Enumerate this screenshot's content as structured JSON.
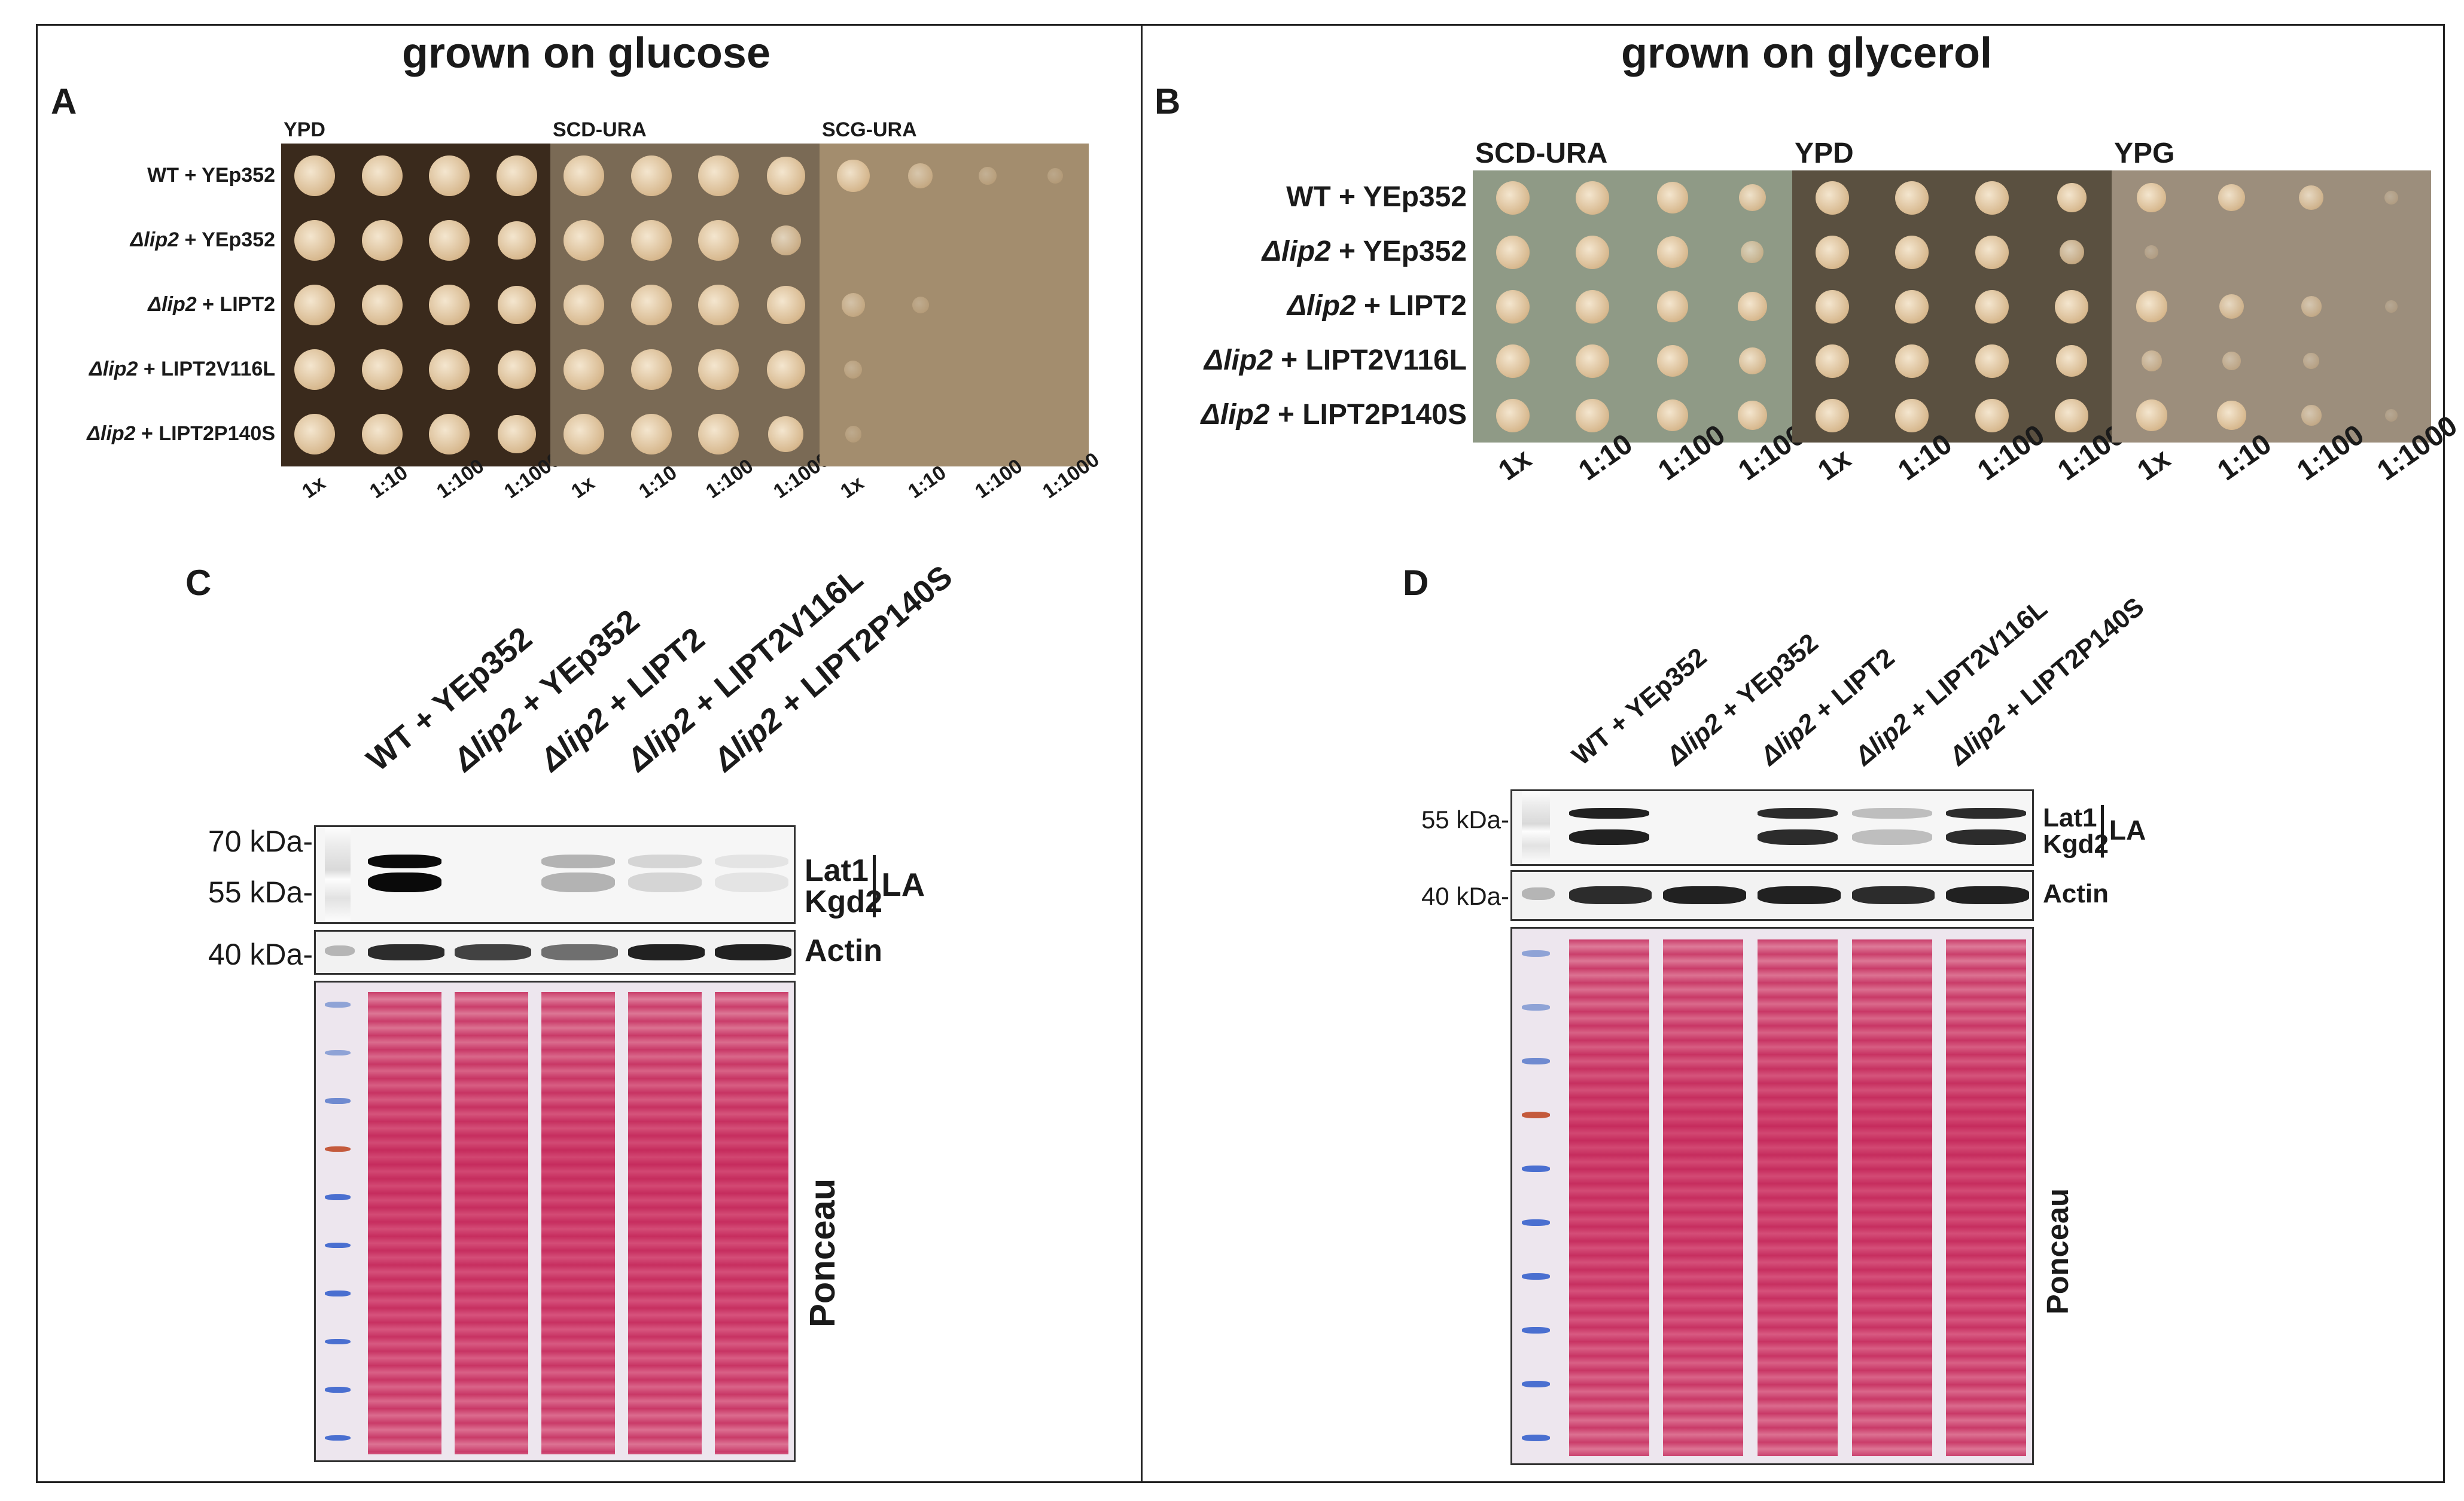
{
  "panels": {
    "left_title": "grown on glucose",
    "right_title": "grown on glycerol",
    "letters": {
      "A": "A",
      "B": "B",
      "C": "C",
      "D": "D"
    }
  },
  "panel_a": {
    "conditions": [
      "YPD",
      "SCD-URA",
      "SCG-URA"
    ],
    "strains": [
      {
        "gene": "",
        "text": "WT + YEp352"
      },
      {
        "gene": "Δlip2",
        "text": " + YEp352"
      },
      {
        "gene": "Δlip2",
        "text": " + LIPT2"
      },
      {
        "gene": "Δlip2",
        "text": " + LIPT2V116L"
      },
      {
        "gene": "Δlip2",
        "text": " + LIPT2P140S"
      }
    ],
    "dilutions": [
      "1x",
      "1:10",
      "1:100",
      "1:1000"
    ],
    "plate_colors": [
      "#3a2a1c",
      "#7a6a55",
      "#a38d6e"
    ],
    "growth": [
      [
        [
          1,
          1,
          1,
          1
        ],
        [
          1,
          1,
          1,
          0.9
        ],
        [
          1,
          1,
          1,
          0.9
        ],
        [
          1,
          1,
          1,
          0.9
        ],
        [
          1,
          1,
          1,
          0.9
        ]
      ],
      [
        [
          1,
          1,
          1,
          0.9
        ],
        [
          1,
          1,
          1,
          0.6
        ],
        [
          1,
          1,
          1,
          0.9
        ],
        [
          1,
          1,
          1,
          0.9
        ],
        [
          1,
          1,
          1,
          0.8
        ]
      ],
      [
        [
          0.7,
          0.4,
          0.15,
          0.05
        ],
        [
          0,
          0,
          0,
          0
        ],
        [
          0.35,
          0.1,
          0,
          0
        ],
        [
          0.15,
          0,
          0,
          0
        ],
        [
          0.08,
          0,
          0,
          0
        ]
      ]
    ]
  },
  "panel_b": {
    "conditions": [
      "SCD-URA",
      "YPD",
      "YPG"
    ],
    "strains": [
      {
        "gene": "",
        "text": "WT + YEp352"
      },
      {
        "gene": "Δlip2",
        "text": " + YEp352"
      },
      {
        "gene": "Δlip2",
        "text": " + LIPT2"
      },
      {
        "gene": "Δlip2",
        "text": " + LIPT2V116L"
      },
      {
        "gene": "Δlip2",
        "text": " + LIPT2P140S"
      }
    ],
    "dilutions": [
      "1x",
      "1:10",
      "1:100",
      "1:1000"
    ],
    "plate_colors": [
      "#8f9a86",
      "#5a5040",
      "#9c8e7c"
    ],
    "growth": [
      [
        [
          1,
          1,
          0.9,
          0.7
        ],
        [
          1,
          1,
          0.9,
          0.5
        ],
        [
          1,
          1,
          0.9,
          0.8
        ],
        [
          1,
          1,
          0.9,
          0.7
        ],
        [
          1,
          1,
          0.9,
          0.8
        ]
      ],
      [
        [
          1,
          1,
          1,
          0.8
        ],
        [
          1,
          1,
          1,
          0.6
        ],
        [
          1,
          1,
          1,
          1
        ],
        [
          1,
          1,
          1,
          0.9
        ],
        [
          1,
          1,
          1,
          1
        ]
      ],
      [
        [
          0.8,
          0.7,
          0.6,
          0.1
        ],
        [
          0.1,
          0,
          0,
          0
        ],
        [
          0.9,
          0.6,
          0.4,
          0.05
        ],
        [
          0.4,
          0.3,
          0.2,
          0
        ],
        [
          0.9,
          0.8,
          0.4,
          0.05
        ]
      ]
    ]
  },
  "panel_c": {
    "lanes": [
      {
        "gene": "",
        "text": "WT + YEp352"
      },
      {
        "gene": "Δlip2",
        "text": " + YEp352"
      },
      {
        "gene": "Δlip2",
        "text": " + LIPT2"
      },
      {
        "gene": "Δlip2",
        "text": " + LIPT2V116L"
      },
      {
        "gene": "Δlip2",
        "text": " + LIPT2P140S"
      }
    ],
    "markers": [
      "70 kDa-",
      "55 kDa-",
      "40 kDa-"
    ],
    "la_labels": [
      "Lat1",
      "Kgd2"
    ],
    "la_bracket": "LA",
    "actin_label": "Actin",
    "ponceau_label": "Ponceau",
    "la_intensity": [
      1.0,
      0.0,
      0.25,
      0.1,
      0.03
    ],
    "actin_intensity": [
      0.85,
      0.75,
      0.55,
      0.9,
      0.9
    ]
  },
  "panel_d": {
    "lanes": [
      {
        "gene": "",
        "text": "WT + YEp352"
      },
      {
        "gene": "Δlip2",
        "text": " + YEp352"
      },
      {
        "gene": "Δlip2",
        "text": " + LIPT2"
      },
      {
        "gene": "Δlip2",
        "text": " + LIPT2V116L"
      },
      {
        "gene": "Δlip2",
        "text": " + LIPT2P140S"
      }
    ],
    "markers": [
      "55 kDa-",
      "40 kDa-"
    ],
    "la_labels": [
      "Lat1",
      "Kgd2"
    ],
    "la_bracket": "LA",
    "actin_label": "Actin",
    "ponceau_label": "Ponceau",
    "la_intensity": [
      0.9,
      0.0,
      0.85,
      0.2,
      0.85
    ],
    "actin_intensity": [
      0.85,
      0.9,
      0.9,
      0.85,
      0.9
    ]
  }
}
